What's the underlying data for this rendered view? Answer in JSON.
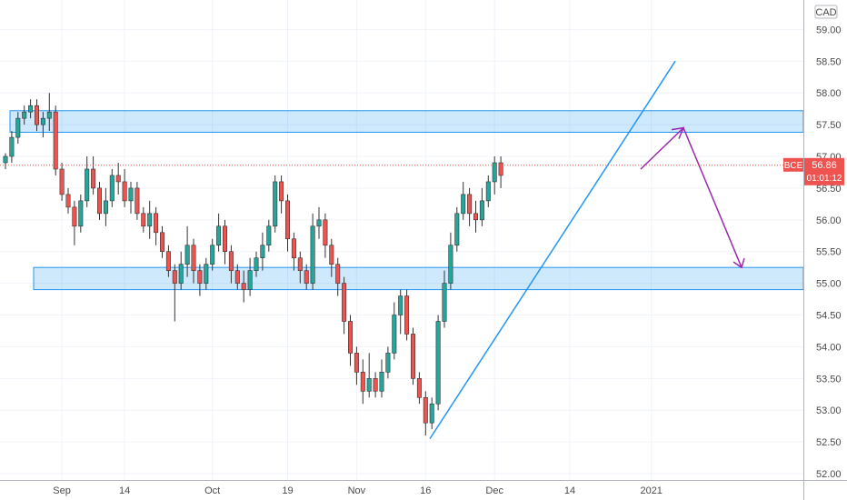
{
  "chart_data": {
    "type": "candlestick",
    "symbol": "BCE",
    "currency": "CAD",
    "last_price": "56.86",
    "countdown": "01:01:12",
    "y_range": [
      51.9,
      59.35
    ],
    "y_ticks": [
      "52.00",
      "52.50",
      "53.00",
      "53.50",
      "54.00",
      "54.50",
      "55.00",
      "55.50",
      "56.00",
      "56.50",
      "57.00",
      "57.50",
      "58.00",
      "58.50",
      "59.00"
    ],
    "x_ticks": [
      {
        "label": "Sep",
        "bar": 9
      },
      {
        "label": "14",
        "bar": 19
      },
      {
        "label": "Oct",
        "bar": 33
      },
      {
        "label": "19",
        "bar": 45
      },
      {
        "label": "Nov",
        "bar": 56
      },
      {
        "label": "16",
        "bar": 67
      },
      {
        "label": "Dec",
        "bar": 78
      },
      {
        "label": "14",
        "bar": 90
      },
      {
        "label": "2021",
        "bar": 103
      }
    ],
    "candles": [
      [
        56.9,
        57.0,
        56.8,
        57.05
      ],
      [
        57.0,
        57.3,
        56.9,
        57.4
      ],
      [
        57.3,
        57.6,
        57.2,
        57.7
      ],
      [
        57.6,
        57.7,
        57.5,
        57.8
      ],
      [
        57.7,
        57.8,
        57.6,
        57.9
      ],
      [
        57.8,
        57.5,
        57.4,
        57.9
      ],
      [
        57.5,
        57.6,
        57.3,
        57.7
      ],
      [
        57.6,
        57.7,
        57.4,
        58.0
      ],
      [
        57.7,
        56.8,
        56.7,
        57.8
      ],
      [
        56.8,
        56.4,
        56.3,
        56.9
      ],
      [
        56.4,
        56.2,
        56.1,
        56.5
      ],
      [
        56.2,
        55.9,
        55.6,
        56.3
      ],
      [
        55.9,
        56.3,
        55.8,
        56.4
      ],
      [
        56.3,
        56.8,
        56.2,
        57.0
      ],
      [
        56.8,
        56.5,
        56.4,
        57.0
      ],
      [
        56.5,
        56.1,
        56.0,
        56.6
      ],
      [
        56.1,
        56.3,
        55.9,
        56.5
      ],
      [
        56.3,
        56.7,
        56.2,
        56.8
      ],
      [
        56.7,
        56.6,
        56.4,
        56.9
      ],
      [
        56.6,
        56.3,
        56.2,
        56.8
      ],
      [
        56.3,
        56.5,
        56.1,
        56.6
      ],
      [
        56.5,
        56.1,
        56.0,
        56.6
      ],
      [
        56.1,
        55.9,
        55.8,
        56.2
      ],
      [
        55.9,
        56.1,
        55.7,
        56.3
      ],
      [
        56.1,
        55.8,
        55.6,
        56.2
      ],
      [
        55.8,
        55.5,
        55.4,
        55.9
      ],
      [
        55.5,
        55.2,
        55.1,
        55.6
      ],
      [
        55.2,
        55.0,
        54.4,
        55.3
      ],
      [
        55.0,
        55.3,
        54.9,
        55.5
      ],
      [
        55.3,
        55.6,
        55.1,
        55.9
      ],
      [
        55.6,
        55.2,
        55.0,
        55.7
      ],
      [
        55.2,
        55.0,
        54.8,
        55.3
      ],
      [
        55.0,
        55.3,
        54.9,
        55.4
      ],
      [
        55.3,
        55.6,
        55.2,
        55.7
      ],
      [
        55.6,
        55.9,
        55.5,
        56.1
      ],
      [
        55.9,
        55.5,
        55.3,
        56.0
      ],
      [
        55.5,
        55.2,
        55.0,
        55.6
      ],
      [
        55.2,
        55.0,
        54.9,
        55.3
      ],
      [
        55.0,
        54.9,
        54.7,
        55.2
      ],
      [
        54.9,
        55.2,
        54.8,
        55.4
      ],
      [
        55.2,
        55.4,
        55.1,
        55.5
      ],
      [
        55.4,
        55.6,
        55.2,
        55.8
      ],
      [
        55.6,
        55.9,
        55.5,
        56.0
      ],
      [
        55.9,
        56.6,
        55.8,
        56.7
      ],
      [
        56.6,
        56.3,
        56.1,
        56.7
      ],
      [
        56.3,
        55.7,
        55.5,
        56.4
      ],
      [
        55.7,
        55.4,
        55.2,
        55.8
      ],
      [
        55.4,
        55.2,
        55.0,
        55.5
      ],
      [
        55.2,
        55.0,
        54.9,
        55.3
      ],
      [
        55.0,
        55.9,
        54.9,
        56.1
      ],
      [
        55.9,
        56.0,
        55.7,
        56.2
      ],
      [
        56.0,
        55.6,
        55.4,
        56.1
      ],
      [
        55.6,
        55.3,
        55.1,
        55.7
      ],
      [
        55.3,
        55.0,
        54.8,
        55.4
      ],
      [
        55.0,
        54.4,
        54.2,
        55.1
      ],
      [
        54.4,
        53.9,
        53.7,
        54.5
      ],
      [
        53.9,
        53.6,
        53.4,
        54.0
      ],
      [
        53.6,
        53.3,
        53.1,
        53.8
      ],
      [
        53.3,
        53.5,
        53.2,
        53.9
      ],
      [
        53.5,
        53.3,
        53.2,
        53.6
      ],
      [
        53.3,
        53.6,
        53.2,
        53.8
      ],
      [
        53.6,
        53.9,
        53.5,
        54.0
      ],
      [
        53.9,
        54.5,
        53.8,
        54.7
      ],
      [
        54.5,
        54.8,
        54.2,
        54.9
      ],
      [
        54.8,
        54.2,
        54.1,
        54.9
      ],
      [
        54.2,
        53.5,
        53.4,
        54.3
      ],
      [
        53.5,
        53.2,
        53.1,
        53.6
      ],
      [
        53.2,
        52.8,
        52.6,
        53.3
      ],
      [
        52.8,
        53.1,
        52.7,
        53.2
      ],
      [
        53.1,
        54.4,
        53.0,
        54.5
      ],
      [
        54.4,
        55.0,
        54.3,
        55.2
      ],
      [
        55.0,
        55.6,
        54.9,
        55.8
      ],
      [
        55.6,
        56.1,
        55.5,
        56.2
      ],
      [
        56.1,
        56.4,
        56.0,
        56.6
      ],
      [
        56.4,
        56.1,
        55.9,
        56.5
      ],
      [
        56.1,
        56.0,
        55.8,
        56.3
      ],
      [
        56.0,
        56.3,
        55.9,
        56.5
      ],
      [
        56.3,
        56.6,
        56.2,
        56.7
      ],
      [
        56.6,
        56.9,
        56.4,
        57.0
      ],
      [
        56.9,
        56.7,
        56.5,
        57.0
      ]
    ],
    "resistance_zone": [
      57.38,
      57.72
    ],
    "support_zone": [
      54.9,
      55.25
    ]
  }
}
